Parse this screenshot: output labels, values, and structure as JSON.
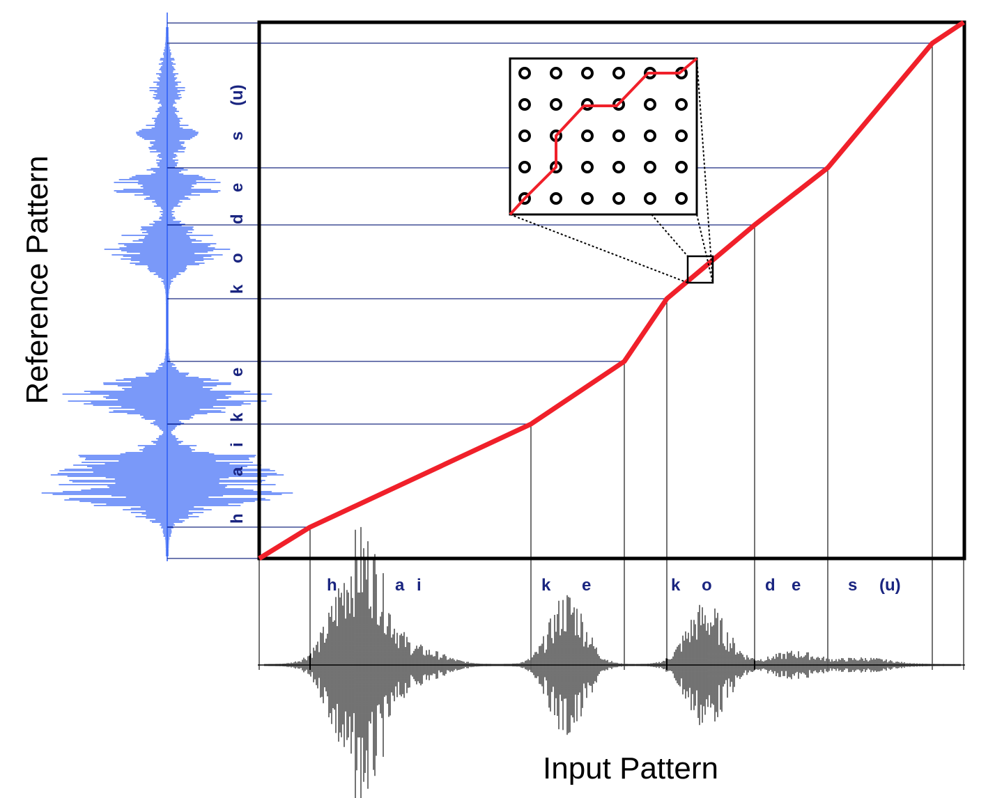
{
  "labels": {
    "reference_axis": "Reference Pattern",
    "input_axis": "Input Pattern"
  },
  "input_phonemes": [
    "h",
    "a",
    "i",
    "k",
    "e",
    "k",
    "o",
    "d",
    "e",
    "s",
    "(u)"
  ],
  "reference_phonemes": [
    "h",
    "a",
    "i",
    "k",
    "e",
    "k",
    "o",
    "d",
    "e",
    "s",
    "(u)"
  ],
  "colors": {
    "warp_path": "#f0202a",
    "reference_waveform": "#2a5cf5",
    "input_waveform": "#000000",
    "guide_lines": "#1a2a80",
    "frame": "#000000"
  },
  "inset": {
    "rows": 5,
    "cols": 6,
    "node_symbol": "circle"
  }
}
